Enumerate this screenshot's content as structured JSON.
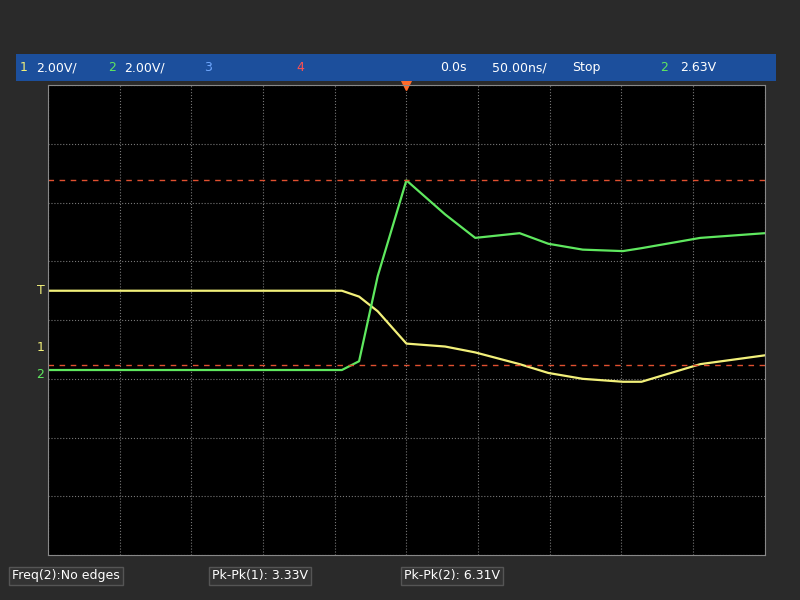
{
  "chart_data": {
    "type": "line",
    "x": [
      -250,
      -45,
      -33,
      -20,
      0,
      27,
      48,
      79,
      99,
      123,
      151,
      164,
      205,
      250
    ],
    "series": [
      {
        "name": "1",
        "color": "#f2f07a",
        "values": [
          1.0,
          1.0,
          0.8,
          0.3,
          -0.8,
          -0.9,
          -1.1,
          -1.5,
          -1.8,
          -2.0,
          -2.1,
          -2.1,
          -1.5,
          -1.2
        ]
      },
      {
        "name": "2",
        "color": "#5fe85f",
        "values": [
          -1.7,
          -1.7,
          -1.4,
          1.5,
          4.76,
          3.6,
          2.8,
          2.96,
          2.6,
          2.4,
          2.35,
          2.45,
          2.8,
          2.96
        ]
      }
    ],
    "xlim": [
      -250,
      250
    ],
    "xticks": [
      -250,
      -200,
      -150,
      -100,
      -50,
      0,
      50,
      100,
      150,
      200,
      250
    ],
    "ylim": [
      -8,
      8
    ],
    "yticks": [
      -8,
      -6,
      -4,
      -2,
      0,
      2,
      4,
      6,
      8
    ],
    "grid": true,
    "tick_labels": false,
    "cursor_levels": [
      4.76,
      -1.53
    ],
    "channel_markers": [
      {
        "label": "T",
        "value": 1.0
      },
      {
        "label": "1",
        "value": -0.95
      },
      {
        "label": "2",
        "value": -1.84
      }
    ],
    "header": [
      "1",
      "2.00V/",
      "2",
      "2.00V/",
      "3",
      "4",
      "0.0s",
      "50.00ns/",
      "Stop",
      "2",
      "2.63V"
    ],
    "footer": [
      "Freq(2):No edges",
      "Pk-Pk(1): 3.33V",
      "Pk-Pk(2): 6.31V"
    ]
  }
}
